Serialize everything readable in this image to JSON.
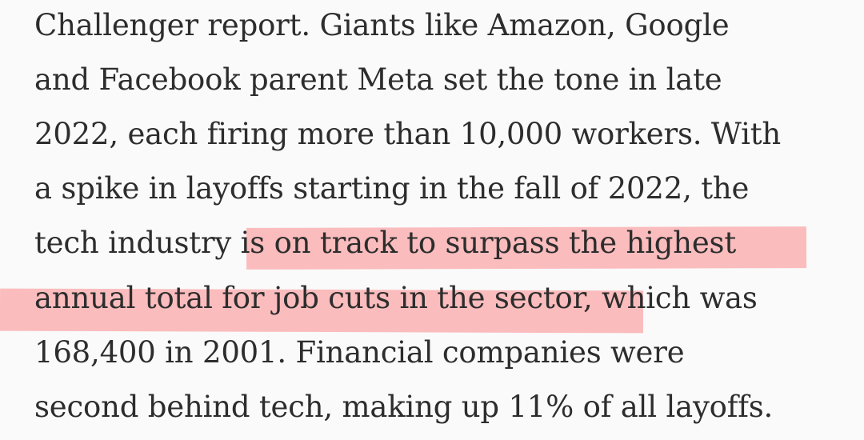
{
  "article": {
    "lines": [
      "Challenger report. Giants like Amazon, Google",
      "and Facebook parent Meta set the tone in late",
      "2022, each firing more than 10,000 workers. With",
      "a spike in layoffs starting in the fall of 2022, the",
      "tech industry is on track to surpass the highest",
      "annual total for job cuts in the sector, which was",
      "168,400 in 2001. Financial companies were",
      "second behind tech, making up 11% of all layoffs."
    ],
    "highlight": {
      "text": "is on track to surpass the highest annual total for job cuts in the sector,",
      "color": "#fbbcbd"
    }
  }
}
